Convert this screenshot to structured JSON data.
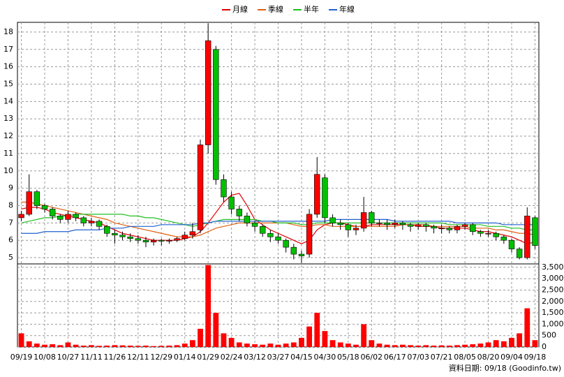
{
  "chart_data": {
    "type": "candlestick",
    "legend_position": "top",
    "grid": true,
    "source": "資料日期: 09/18 (Goodinfo.tw)",
    "categories": [
      "09/19",
      null,
      null,
      "10/08",
      null,
      null,
      "10/27",
      null,
      null,
      "11/11",
      null,
      null,
      "11/26",
      null,
      null,
      "12/11",
      null,
      null,
      "12/29",
      null,
      null,
      "01/14",
      null,
      null,
      "01/29",
      null,
      null,
      "02/24",
      null,
      null,
      "03/12",
      null,
      null,
      "03/27",
      null,
      null,
      "04/15",
      null,
      null,
      "04/30",
      null,
      null,
      "05/18",
      null,
      null,
      "06/02",
      null,
      null,
      "06/17",
      null,
      null,
      "07/03",
      null,
      null,
      "07/21",
      null,
      null,
      "08/05",
      null,
      null,
      "08/20",
      null,
      null,
      "09/04",
      null,
      null,
      "09/18"
    ],
    "ylim": [
      4.64,
      18.56
    ],
    "yticks": [
      5,
      6,
      7,
      8,
      9,
      10,
      11,
      12,
      13,
      14,
      15,
      16,
      17,
      18
    ],
    "y2lim": [
      0,
      3650
    ],
    "y2ticks": [
      0,
      500,
      {
        "value": 1000,
        "label": "1,000"
      },
      {
        "value": 1500,
        "label": "1,500"
      },
      {
        "value": 2000,
        "label": "2,000"
      },
      {
        "value": 2500,
        "label": "2,500"
      },
      {
        "value": 3000,
        "label": "3,000"
      },
      {
        "value": 3500,
        "label": "3,500"
      }
    ],
    "up_color": "#ff0000",
    "down_color": "#00c000",
    "ohlc": {
      "open": [
        7.3,
        7.5,
        8.8,
        8.0,
        7.8,
        7.4,
        7.2,
        7.5,
        7.3,
        7.0,
        7.1,
        6.8,
        6.4,
        6.3,
        6.2,
        6.1,
        6.0,
        5.9,
        6.0,
        5.95,
        6.0,
        6.1,
        6.3,
        6.6,
        11.5,
        17.0,
        9.5,
        8.5,
        7.8,
        7.4,
        7.0,
        6.8,
        6.4,
        6.2,
        6.0,
        5.6,
        5.2,
        5.2,
        7.5,
        9.6,
        7.3,
        7.0,
        6.9,
        6.6,
        6.7,
        7.6,
        7.0,
        7.0,
        6.9,
        7.0,
        6.9,
        6.8,
        6.9,
        6.8,
        6.7,
        6.7,
        6.6,
        6.8,
        6.9,
        6.5,
        6.4,
        6.4,
        6.2,
        6.0,
        5.5,
        5.0,
        7.3
      ],
      "high": [
        7.7,
        9.8,
        8.9,
        8.1,
        7.9,
        7.5,
        7.7,
        7.6,
        7.4,
        7.3,
        7.2,
        6.9,
        6.6,
        6.5,
        6.4,
        6.3,
        6.2,
        6.1,
        6.1,
        6.1,
        6.2,
        6.5,
        7.0,
        11.8,
        18.5,
        17.2,
        9.8,
        8.8,
        8.0,
        7.6,
        7.1,
        6.9,
        6.6,
        6.4,
        6.1,
        5.8,
        5.4,
        7.8,
        10.8,
        9.8,
        7.5,
        7.2,
        7.0,
        6.9,
        8.5,
        7.7,
        7.2,
        7.2,
        7.2,
        7.1,
        7.0,
        7.0,
        7.0,
        6.9,
        6.9,
        6.8,
        6.9,
        7.0,
        7.0,
        6.6,
        6.6,
        6.5,
        6.3,
        6.1,
        5.6,
        7.9,
        7.4
      ],
      "low": [
        7.1,
        7.4,
        7.8,
        7.6,
        7.2,
        7.0,
        7.0,
        7.1,
        6.8,
        6.8,
        6.6,
        6.2,
        5.8,
        6.0,
        5.9,
        5.8,
        5.6,
        5.7,
        5.7,
        5.8,
        5.9,
        6.0,
        6.1,
        6.4,
        11.0,
        9.2,
        8.2,
        7.5,
        7.1,
        6.8,
        6.5,
        6.2,
        5.9,
        5.8,
        5.3,
        4.9,
        4.7,
        5.0,
        7.3,
        7.0,
        6.8,
        6.6,
        6.2,
        6.3,
        6.5,
        6.8,
        6.8,
        6.6,
        6.7,
        6.6,
        6.5,
        6.6,
        6.5,
        6.4,
        6.4,
        6.4,
        6.4,
        6.6,
        6.3,
        6.2,
        6.2,
        6.0,
        5.8,
        5.3,
        4.9,
        4.9,
        5.5
      ],
      "close": [
        7.5,
        8.8,
        8.0,
        7.8,
        7.4,
        7.2,
        7.5,
        7.3,
        7.0,
        7.1,
        6.8,
        6.4,
        6.3,
        6.2,
        6.1,
        6.0,
        5.9,
        6.0,
        5.95,
        6.0,
        6.1,
        6.3,
        6.5,
        11.5,
        17.5,
        9.5,
        8.5,
        7.8,
        7.4,
        7.0,
        6.8,
        6.4,
        6.2,
        6.0,
        5.6,
        5.2,
        5.1,
        7.5,
        9.8,
        7.3,
        7.0,
        6.9,
        6.6,
        6.7,
        7.6,
        7.0,
        7.0,
        6.9,
        7.0,
        6.9,
        6.8,
        6.9,
        6.8,
        6.7,
        6.7,
        6.6,
        6.8,
        6.9,
        6.5,
        6.4,
        6.4,
        6.2,
        6.0,
        5.5,
        5.0,
        7.4,
        5.7
      ]
    },
    "volume": {
      "color": "#ff0000",
      "axis": "y2",
      "values": [
        600,
        250,
        150,
        100,
        120,
        80,
        200,
        100,
        60,
        80,
        50,
        60,
        80,
        70,
        60,
        50,
        60,
        40,
        50,
        60,
        80,
        150,
        300,
        800,
        3600,
        1500,
        600,
        400,
        200,
        150,
        120,
        100,
        150,
        100,
        150,
        200,
        400,
        900,
        1500,
        700,
        300,
        200,
        150,
        100,
        1000,
        300,
        150,
        100,
        80,
        100,
        80,
        60,
        80,
        60,
        70,
        60,
        80,
        100,
        120,
        150,
        200,
        300,
        250,
        400,
        600,
        1700,
        300
      ]
    },
    "series": [
      {
        "name": "月線",
        "color": "#e00000",
        "values": [
          7.8,
          7.9,
          7.9,
          7.8,
          7.6,
          7.5,
          7.4,
          7.3,
          7.2,
          7.1,
          7.0,
          6.8,
          6.6,
          6.4,
          6.3,
          6.2,
          6.1,
          6.0,
          6.0,
          6.0,
          6.0,
          6.1,
          6.2,
          6.5,
          7.0,
          7.6,
          8.2,
          8.6,
          8.7,
          8.0,
          7.2,
          6.9,
          6.6,
          6.4,
          6.2,
          6.0,
          5.8,
          6.0,
          6.6,
          6.9,
          7.0,
          7.0,
          6.9,
          6.8,
          6.8,
          6.9,
          6.9,
          6.9,
          6.9,
          6.9,
          6.9,
          6.8,
          6.8,
          6.8,
          6.7,
          6.7,
          6.7,
          6.7,
          6.6,
          6.5,
          6.5,
          6.4,
          6.3,
          6.2,
          6.0,
          5.8,
          5.9
        ]
      },
      {
        "name": "季線",
        "color": "#e06010",
        "values": [
          8.2,
          8.2,
          8.1,
          8.0,
          7.9,
          7.8,
          7.7,
          7.6,
          7.5,
          7.4,
          7.3,
          7.2,
          7.0,
          6.9,
          6.8,
          6.7,
          6.6,
          6.5,
          6.4,
          6.3,
          6.2,
          6.2,
          6.2,
          6.3,
          6.5,
          6.7,
          6.8,
          6.9,
          7.0,
          7.0,
          7.0,
          7.0,
          7.0,
          7.0,
          7.0,
          6.9,
          6.8,
          6.8,
          6.9,
          6.9,
          6.8,
          6.8,
          6.8,
          6.8,
          6.8,
          6.8,
          6.8,
          6.8,
          6.8,
          6.9,
          6.9,
          6.9,
          6.9,
          6.8,
          6.8,
          6.8,
          6.8,
          6.8,
          6.7,
          6.7,
          6.7,
          6.6,
          6.6,
          6.5,
          6.4,
          6.4,
          6.3
        ]
      },
      {
        "name": "半年",
        "color": "#20c020",
        "values": [
          7.0,
          7.1,
          7.2,
          7.3,
          7.3,
          7.4,
          7.4,
          7.5,
          7.5,
          7.5,
          7.5,
          7.5,
          7.5,
          7.5,
          7.4,
          7.4,
          7.3,
          7.3,
          7.2,
          7.1,
          7.0,
          6.9,
          6.8,
          6.9,
          7.0,
          7.1,
          7.2,
          7.2,
          7.2,
          7.2,
          7.2,
          7.1,
          7.1,
          7.0,
          7.0,
          7.0,
          6.9,
          6.9,
          7.0,
          7.0,
          7.0,
          7.0,
          7.0,
          7.0,
          7.0,
          7.0,
          7.0,
          7.0,
          7.0,
          7.0,
          7.0,
          7.0,
          7.0,
          7.0,
          7.0,
          6.9,
          6.9,
          6.9,
          6.9,
          6.9,
          6.8,
          6.8,
          6.8,
          6.7,
          6.7,
          6.6,
          6.6
        ]
      },
      {
        "name": "年線",
        "color": "#2060d0",
        "values": [
          6.4,
          6.4,
          6.4,
          6.5,
          6.5,
          6.5,
          6.5,
          6.6,
          6.6,
          6.6,
          6.6,
          6.7,
          6.7,
          6.7,
          6.8,
          6.8,
          6.8,
          6.8,
          6.9,
          6.9,
          6.9,
          6.9,
          6.9,
          7.0,
          7.0,
          7.1,
          7.1,
          7.1,
          7.1,
          7.1,
          7.1,
          7.1,
          7.1,
          7.1,
          7.1,
          7.1,
          7.1,
          7.1,
          7.1,
          7.1,
          7.2,
          7.2,
          7.2,
          7.2,
          7.2,
          7.2,
          7.2,
          7.2,
          7.1,
          7.1,
          7.1,
          7.1,
          7.1,
          7.1,
          7.1,
          7.1,
          7.0,
          7.0,
          7.0,
          7.0,
          7.0,
          7.0,
          6.9,
          6.9,
          6.9,
          6.9,
          6.9
        ]
      }
    ]
  }
}
